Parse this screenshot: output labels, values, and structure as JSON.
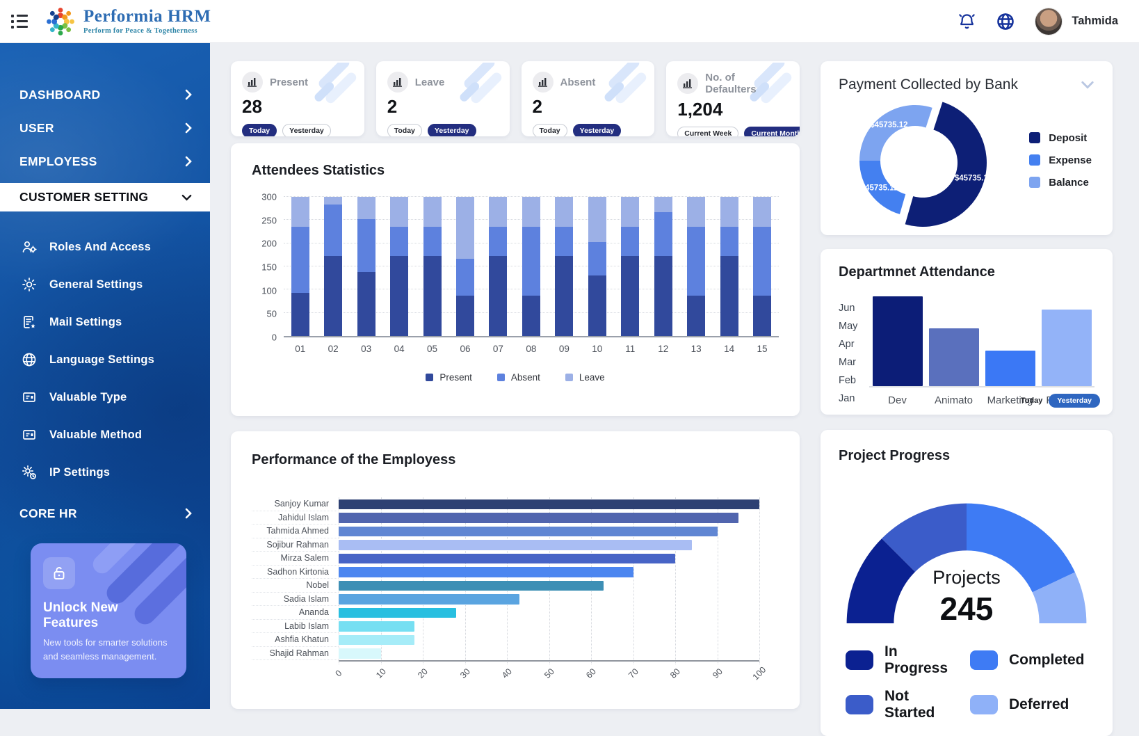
{
  "header": {
    "brand": "Performia HRM",
    "tagline": "Perform for Peace & Togetherness",
    "user_name": "Tahmida",
    "logo_colors": [
      "#e8442e",
      "#f29a1f",
      "#f6c443",
      "#7cc043",
      "#2ba84a",
      "#35b5c9",
      "#2a6fd3",
      "#15418f"
    ]
  },
  "sidebar": {
    "items": [
      {
        "label": "DASHBOARD",
        "chevron": "right"
      },
      {
        "label": "USER",
        "chevron": "right"
      },
      {
        "label": "EMPLOYESS",
        "chevron": "right"
      },
      {
        "label": "CUSTOMER SETTING",
        "chevron": "down",
        "active": true
      }
    ],
    "subitems": [
      {
        "label": "Roles And Access",
        "icon": "roles-icon"
      },
      {
        "label": "General Settings",
        "icon": "gear-icon"
      },
      {
        "label": "Mail Settings",
        "icon": "mail-star-icon"
      },
      {
        "label": "Language Settings",
        "icon": "globe-icon"
      },
      {
        "label": "Valuable Type",
        "icon": "card-list-icon"
      },
      {
        "label": "Valuable Method",
        "icon": "card-list-icon"
      },
      {
        "label": "IP Settings",
        "icon": "gear-clock-icon"
      }
    ],
    "core_hr": {
      "label": "CORE HR",
      "chevron": "right"
    },
    "promo": {
      "title": "Unlock New Features",
      "description": "New tools for smarter solutions and seamless management."
    }
  },
  "stats": [
    {
      "label": "Present",
      "value": "28",
      "pills": [
        {
          "label": "Today",
          "active": true
        },
        {
          "label": "Yesterday",
          "active": false
        }
      ]
    },
    {
      "label": "Leave",
      "value": "2",
      "pills": [
        {
          "label": "Today",
          "active": false
        },
        {
          "label": "Yesterday",
          "active": true
        }
      ]
    },
    {
      "label": "Absent",
      "value": "2",
      "pills": [
        {
          "label": "Today",
          "active": false
        },
        {
          "label": "Yesterday",
          "active": true
        }
      ]
    },
    {
      "label": "No. of Defaulters",
      "value": "1,204",
      "pills": [
        {
          "label": "Current Week",
          "active": false
        },
        {
          "label": "Current Month",
          "active": true
        }
      ]
    }
  ],
  "colors": {
    "accent_navy": "#232e80",
    "sidebar_blue": "#11509f"
  },
  "chart_data": [
    {
      "id": "attendees",
      "type": "bar",
      "stacked": true,
      "title": "Attendees Statistics",
      "categories": [
        "01",
        "02",
        "03",
        "04",
        "05",
        "06",
        "07",
        "08",
        "09",
        "10",
        "11",
        "12",
        "13",
        "14",
        "15"
      ],
      "series": [
        {
          "name": "Present",
          "color": "#31499c",
          "values": [
            93,
            173,
            138,
            173,
            173,
            87,
            173,
            87,
            173,
            130,
            173,
            173,
            87,
            173,
            87
          ]
        },
        {
          "name": "Absent",
          "color": "#5d81de",
          "values": [
            142,
            110,
            114,
            62,
            62,
            80,
            62,
            148,
            62,
            73,
            62,
            94,
            148,
            62,
            148
          ]
        },
        {
          "name": "Leave",
          "color": "#9cb0e6",
          "values": [
            65,
            17,
            48,
            65,
            65,
            133,
            65,
            65,
            65,
            97,
            65,
            33,
            65,
            65,
            65
          ]
        }
      ],
      "ylim": [
        0,
        300
      ],
      "yticks": [
        0,
        50,
        100,
        150,
        200,
        250,
        300
      ],
      "grid": "dotted",
      "legend_position": "bottom"
    },
    {
      "id": "payment",
      "type": "pie",
      "title": "Payment Collected by Bank",
      "slices": [
        {
          "name": "Deposit",
          "value": 45735.12,
          "label": "$45735.1",
          "color": "#0d1f76",
          "exploded": true
        },
        {
          "name": "Expense",
          "value": 45735.12,
          "label": "$45735.12",
          "color": "#4480f0",
          "exploded": false
        },
        {
          "name": "Balance",
          "value": 45735.12,
          "label": "$45735.12",
          "color": "#7da4f0",
          "exploded": false
        }
      ],
      "legend_position": "right"
    },
    {
      "id": "department",
      "type": "bar",
      "title": "Departmnet Attendance",
      "categories": [
        "Dev",
        "Animato",
        "Marketing",
        "Robotics"
      ],
      "values": [
        6.1,
        3.9,
        2.4,
        5.2
      ],
      "colors": [
        "#0c1d77",
        "#5a70bd",
        "#3b78f5",
        "#93b3f8"
      ],
      "ylabel_ticks": [
        "Jun",
        "May",
        "Apr",
        "Mar",
        "Feb",
        "Jan"
      ],
      "ymax": 6.5,
      "footer": [
        "Today",
        "Yesterday"
      ],
      "legend_position": "none"
    },
    {
      "id": "performance",
      "type": "bar",
      "orientation": "horizontal",
      "title": "Performance of the Employess",
      "categories": [
        "Sanjoy Kumar",
        "Jahidul Islam",
        "Tahmida Ahmed",
        "Sojibur Rahman",
        "Mirza Salem",
        "Sadhon Kirtonia",
        "Nobel",
        "Sadia Islam",
        "Ananda",
        "Labib Islam",
        "Ashfia Khatun",
        "Shajid Rahman"
      ],
      "values": [
        100,
        95,
        90,
        84,
        80,
        70,
        63,
        43,
        28,
        18,
        18,
        10
      ],
      "colors": [
        "#2e4173",
        "#5165ae",
        "#6086d3",
        "#a9bdf3",
        "#4764c6",
        "#4c86f0",
        "#3d8fb5",
        "#5aa4e0",
        "#28bfe0",
        "#76dff2",
        "#a6ecf8",
        "#d8f8fc"
      ],
      "xticks": [
        0,
        10,
        20,
        30,
        40,
        50,
        60,
        70,
        80,
        90,
        100
      ],
      "xlim": [
        0,
        100
      ],
      "grid": "dotted"
    },
    {
      "id": "project",
      "type": "gauge",
      "title": "Project Progress",
      "center_label": "Projects",
      "center_value": "245",
      "segments": [
        {
          "name": "In Progress",
          "color": "#0b2191",
          "fraction": 0.25
        },
        {
          "name": "Not Started",
          "color": "#3b5cc9",
          "fraction": 0.25
        },
        {
          "name": "Completed",
          "color": "#3e7bf4",
          "fraction": 0.36
        },
        {
          "name": "Deferred",
          "color": "#8fb1f8",
          "fraction": 0.14
        }
      ],
      "legend_order": [
        "In Progress",
        "Completed",
        "Not Started",
        "Deferred"
      ]
    }
  ]
}
